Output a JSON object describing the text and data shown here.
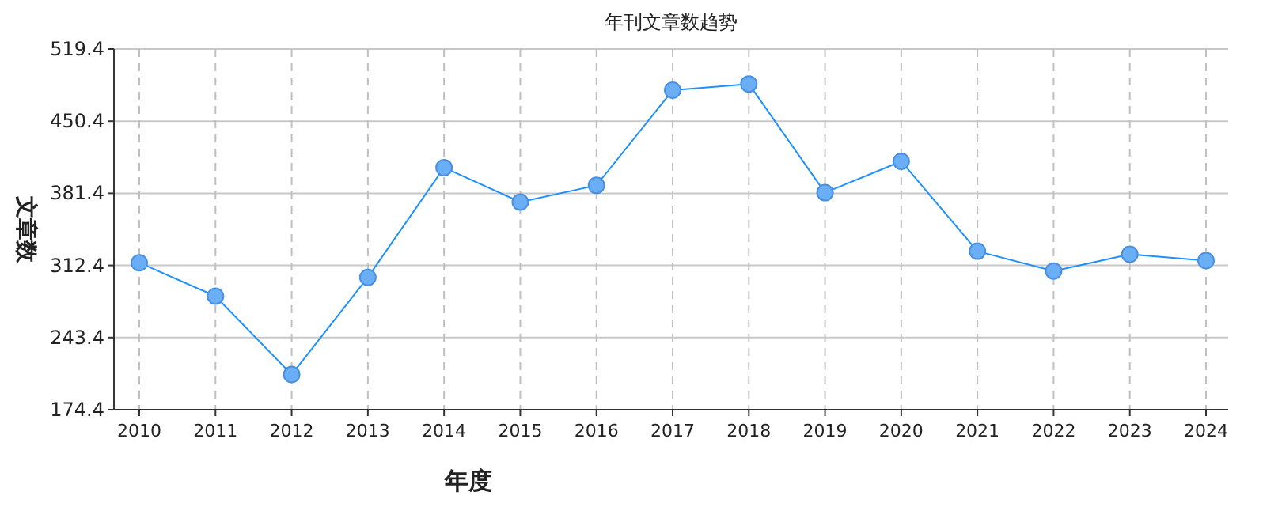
{
  "chart_data": {
    "type": "line",
    "title": "年刊文章数趋势",
    "xlabel": "年度",
    "ylabel": "文章数",
    "categories": [
      "2010",
      "2011",
      "2012",
      "2013",
      "2014",
      "2015",
      "2016",
      "2017",
      "2018",
      "2019",
      "2020",
      "2021",
      "2022",
      "2023",
      "2024"
    ],
    "series": [
      {
        "color": "#1e90ff",
        "values": [
          315,
          283,
          208,
          301,
          406,
          373,
          389,
          480,
          486,
          382,
          412,
          326,
          307,
          323,
          317
        ]
      }
    ],
    "ylim": [
      174.4,
      519.4
    ],
    "yticks": [
      174.4,
      243.4,
      312.4,
      381.4,
      450.4,
      519.4
    ],
    "grid": true,
    "marker": "circle",
    "line_style": "solid"
  }
}
